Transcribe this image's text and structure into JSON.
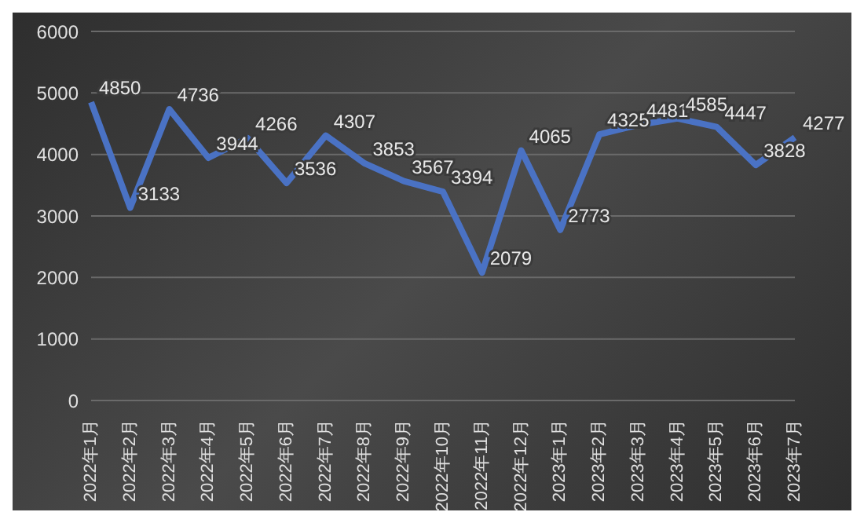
{
  "chart_data": {
    "type": "line",
    "categories": [
      "2022年1月",
      "2022年2月",
      "2022年3月",
      "2022年4月",
      "2022年5月",
      "2022年6月",
      "2022年7月",
      "2022年8月",
      "2022年9月",
      "2022年10月",
      "2022年11月",
      "2022年12月",
      "2023年1月",
      "2023年2月",
      "2023年3月",
      "2023年4月",
      "2023年5月",
      "2023年6月",
      "2023年7月"
    ],
    "values": [
      4850,
      3133,
      4736,
      3944,
      4266,
      3536,
      4307,
      3853,
      3567,
      3394,
      2079,
      4065,
      2773,
      4325,
      4481,
      4585,
      4447,
      3828,
      4277
    ],
    "color": "#4a72c4",
    "ylim": [
      0,
      6000
    ],
    "yticks": [
      0,
      1000,
      2000,
      3000,
      4000,
      5000,
      6000
    ],
    "grid": "y",
    "data_labels": true,
    "marker": "none",
    "line_style": "solid"
  }
}
